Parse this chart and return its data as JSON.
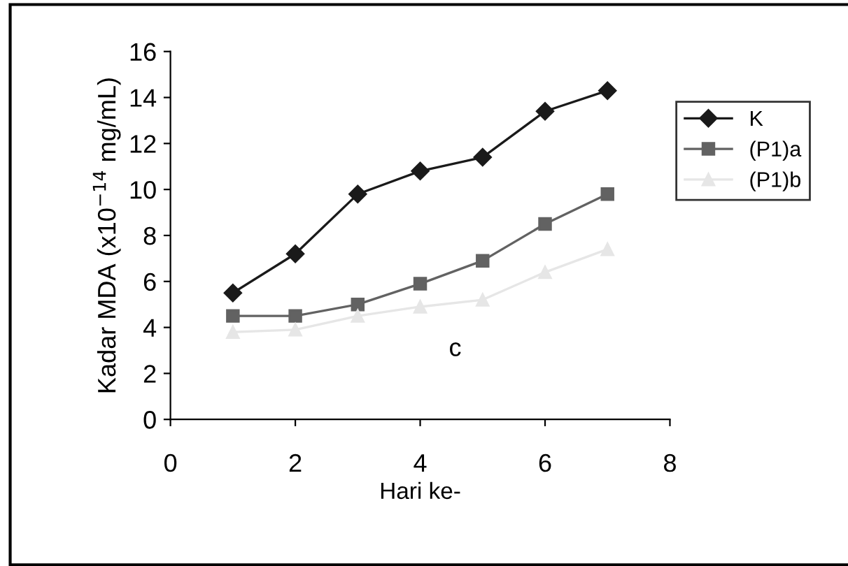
{
  "chart_data": {
    "type": "line",
    "xlabel": "Hari ke-",
    "ylabel": "Kadar MDA (x10$^{−14}$ mg/mL)",
    "x": [
      1,
      2,
      3,
      4,
      5,
      6,
      7
    ],
    "series": [
      {
        "name": "K",
        "color": "#1a1a1a",
        "marker": "diamond",
        "values": [
          5.5,
          7.2,
          9.8,
          10.8,
          11.4,
          13.4,
          14.3
        ]
      },
      {
        "name": "(P1)a",
        "color": "#626262",
        "marker": "square",
        "values": [
          4.5,
          4.5,
          5.0,
          5.9,
          6.9,
          8.5,
          9.8
        ]
      },
      {
        "name": "(P1)b",
        "color": "#e6e6e6",
        "marker": "triangle",
        "values": [
          3.8,
          3.9,
          4.5,
          4.9,
          5.2,
          6.4,
          7.4
        ]
      }
    ],
    "xlim": [
      0,
      8
    ],
    "xticks": [
      0,
      2,
      4,
      6,
      8
    ],
    "ylim": [
      0,
      16
    ],
    "yticks": [
      0,
      2,
      4,
      6,
      8,
      10,
      12,
      14,
      16
    ],
    "annotations": [
      "c"
    ],
    "legend": "right",
    "grid": false,
    "line_style": "solid"
  }
}
